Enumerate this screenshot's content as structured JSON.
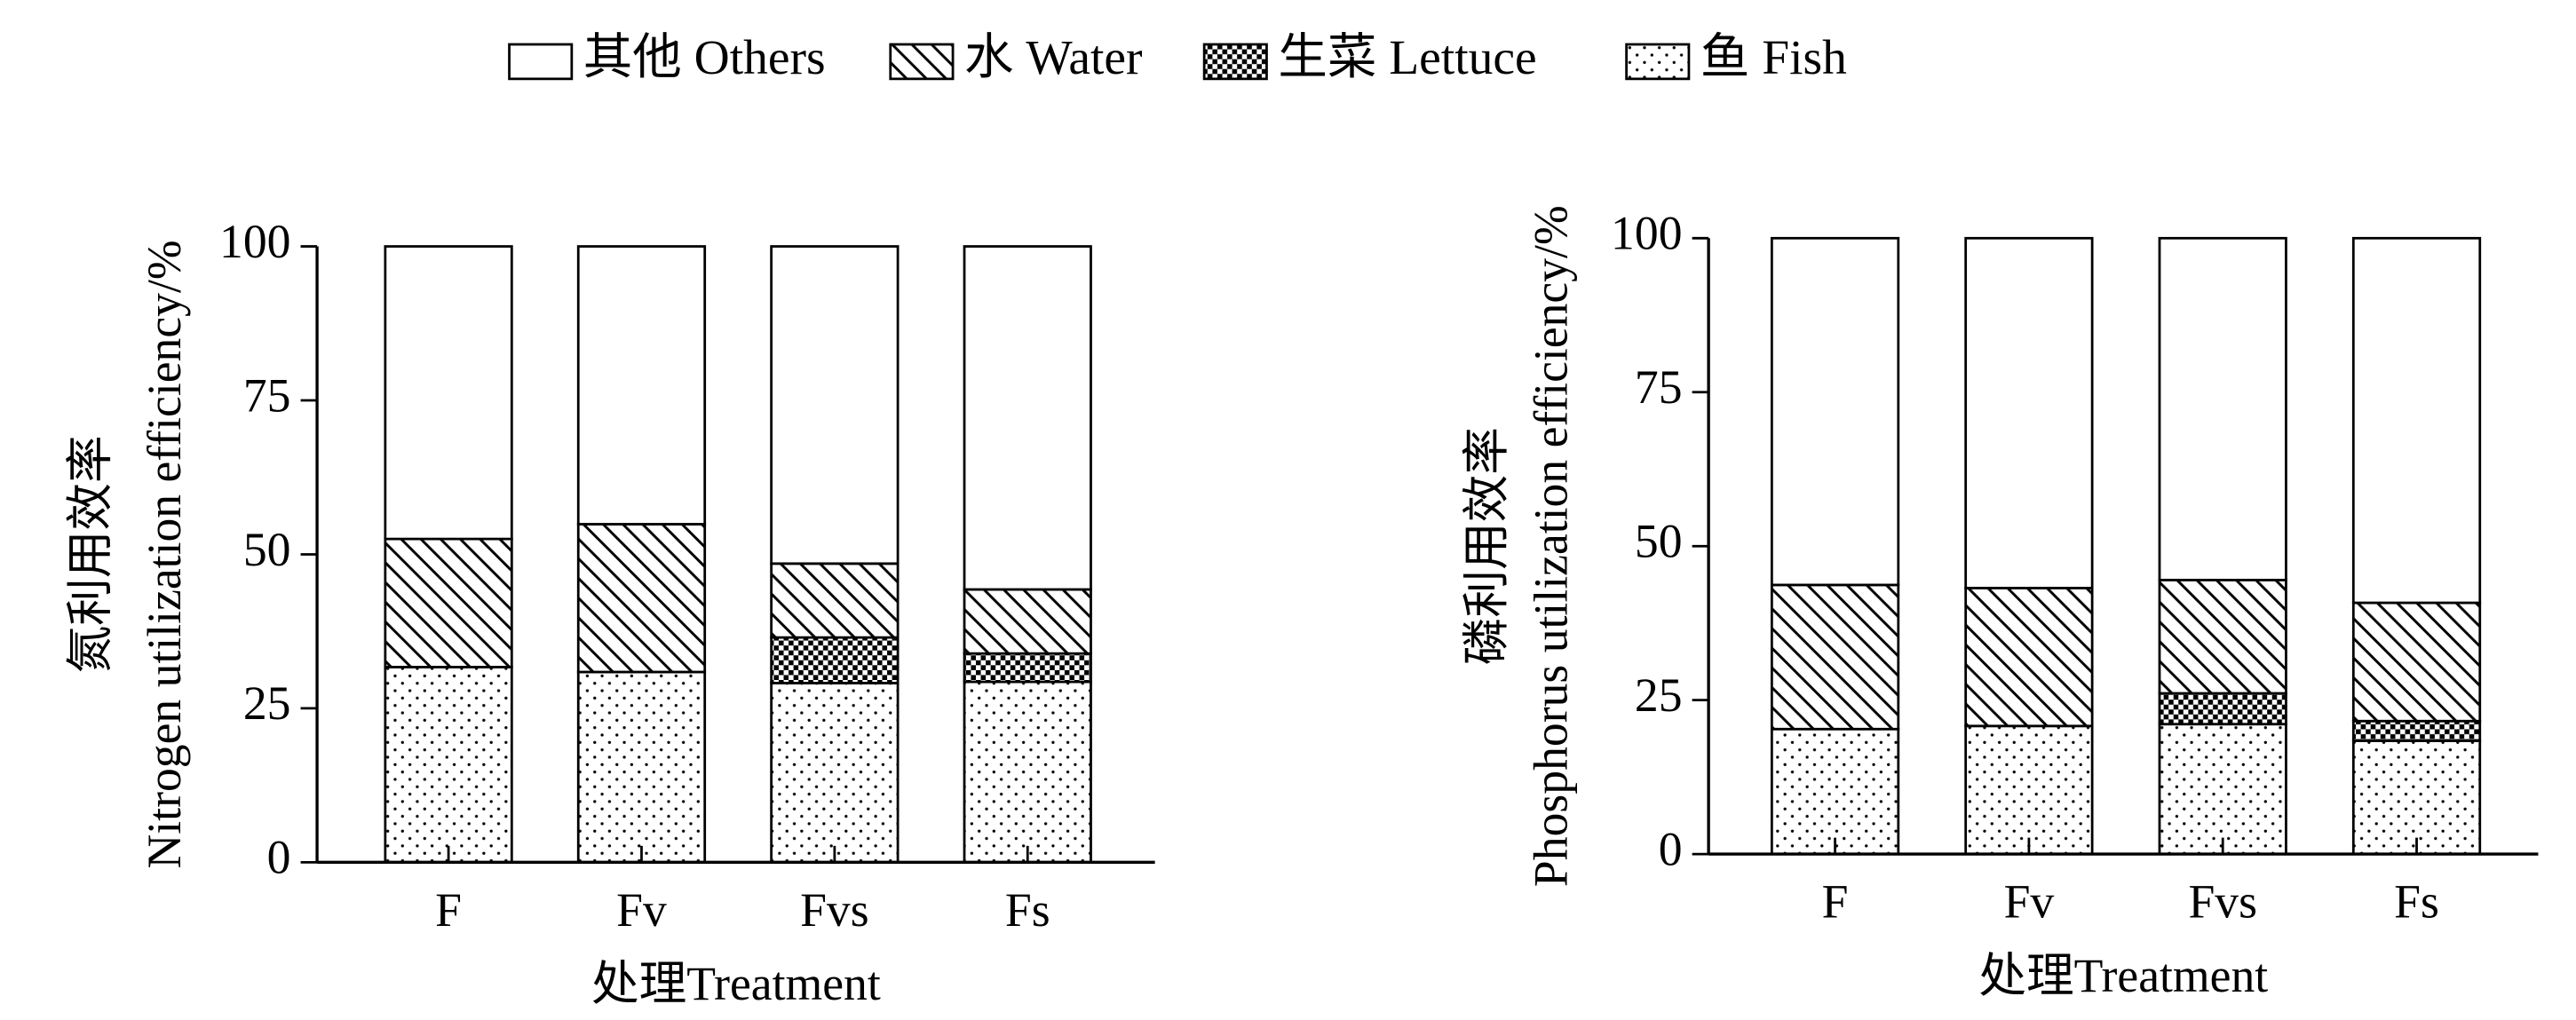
{
  "chart_data": [
    {
      "type": "stacked_bar",
      "categories": [
        "F",
        "Fv",
        "Fvs",
        "Fs"
      ],
      "ylabel": [
        "氮利用效率",
        "Nitrogen utilization efficiency/%"
      ],
      "xlabel": "处理Treatment",
      "ylim": [
        0,
        100
      ],
      "yticks": [
        0,
        25,
        50,
        75,
        100
      ],
      "series": [
        {
          "name": "鱼 Fish",
          "pattern": "dots",
          "color": "#000000",
          "values": [
            31.7,
            30.9,
            29.1,
            29.3
          ]
        },
        {
          "name": "生菜 Lettuce",
          "pattern": "cross",
          "color": "#000000",
          "values": [
            0,
            0,
            7.4,
            4.6
          ]
        },
        {
          "name": "水 Water",
          "pattern": "hatch",
          "color": "#000000",
          "values": [
            20.8,
            24,
            12,
            10.4
          ]
        },
        {
          "name": "其他 Others",
          "pattern": "blank",
          "color": "#000000",
          "values": [
            47.5,
            45.1,
            51.5,
            55.7
          ]
        }
      ]
    },
    {
      "type": "stacked_bar",
      "categories": [
        "F",
        "Fv",
        "Fvs",
        "Fs"
      ],
      "ylabel": [
        "磷利用效率",
        "Phosphorus utilization efficiency/%"
      ],
      "xlabel": "处理Treatment",
      "ylim": [
        0,
        100
      ],
      "yticks": [
        0,
        25,
        50,
        75,
        100
      ],
      "series": [
        {
          "pattern": "dots",
          "color": "#000000",
          "values": [
            20.3,
            20.8,
            21.1,
            18.4
          ]
        },
        {
          "pattern": "cross",
          "color": "#000000",
          "values": [
            0,
            0,
            5,
            3.2
          ]
        },
        {
          "pattern": "hatch",
          "color": "#000000",
          "values": [
            23.4,
            22.4,
            18.4,
            19.2
          ]
        },
        {
          "pattern": "blank",
          "color": "#000000",
          "values": [
            56.3,
            56.8,
            55.5,
            59.2
          ]
        }
      ]
    }
  ]
}
